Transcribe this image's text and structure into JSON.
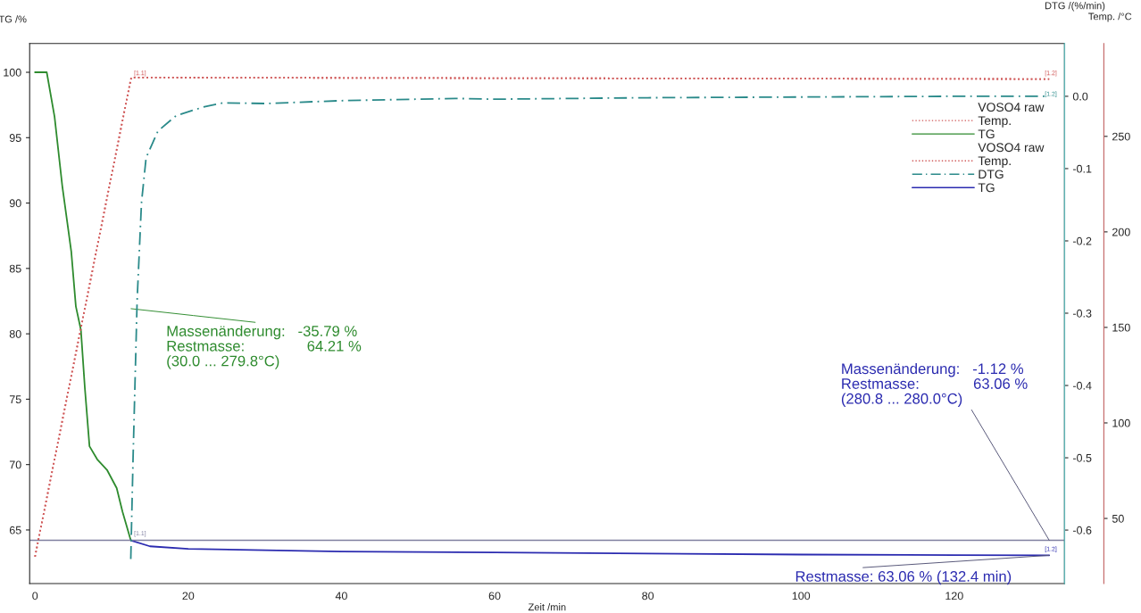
{
  "chart_data": {
    "type": "line",
    "xlabel": "Zeit /min",
    "ylabel": "TG /%",
    "y2label": "DTG /(%/min)",
    "y3label": "Temp. /°C",
    "xlim": [
      -0.7,
      134.4
    ],
    "xticks": [
      0,
      20,
      40,
      60,
      80,
      100,
      120
    ],
    "ylim": [
      60.9,
      102.2
    ],
    "yticks": [
      65,
      70,
      75,
      80,
      85,
      90,
      95,
      100
    ],
    "y2lim": [
      -0.674,
      0.073
    ],
    "y2ticks": [
      {
        "value": 0,
        "label": "0.0"
      },
      {
        "value": -0.1,
        "label": "-0.1"
      },
      {
        "value": -0.2,
        "label": "-0.2"
      },
      {
        "value": -0.3,
        "label": "-0.3"
      },
      {
        "value": -0.4,
        "label": "-0.4"
      },
      {
        "value": -0.5,
        "label": "-0.5"
      },
      {
        "value": -0.6,
        "label": "-0.6"
      }
    ],
    "y3lim": [
      15.9,
      298.6
    ],
    "y3ticks": [
      50,
      100,
      150,
      200,
      250
    ],
    "grid": false,
    "legend": "top right",
    "legend_title": [
      "VOSO4 raw",
      "VOSO4 raw"
    ],
    "series": [
      {
        "name": "Temp.",
        "axis": "y3",
        "color": "#d05a5a",
        "line_style": "dotted",
        "x": [
          0,
          12.5,
          12.6,
          132.4
        ],
        "values": [
          30.0,
          279.8,
          280.8,
          280.0
        ]
      },
      {
        "name": "TG",
        "axis": "y",
        "color": "#2e8b2e",
        "line_style": "solid",
        "x": [
          0,
          1.0,
          1.53,
          2.55,
          3.56,
          4.73,
          5.33,
          5.99,
          6.5,
          7.11,
          8.12,
          9.39,
          10.66,
          11.42,
          12.5
        ],
        "values": [
          100,
          100,
          100,
          96.6,
          91.3,
          86.3,
          82.1,
          80.3,
          75.9,
          71.4,
          70.4,
          69.6,
          68.2,
          66.4,
          64.21
        ]
      },
      {
        "name": "Temp.",
        "axis": "y3",
        "color": "#d05a5a",
        "line_style": "dotted",
        "x": [
          0,
          12.5,
          12.6,
          132.4
        ],
        "values": [
          30.0,
          279.8,
          280.8,
          280.0
        ]
      },
      {
        "name": "DTG",
        "axis": "y2",
        "color": "#2a8a8a",
        "line_style": "dashdot",
        "x": [
          12.5,
          12.8,
          13.33,
          13.9,
          14.5,
          16.05,
          18.4,
          21.9,
          24.6,
          30,
          40,
          55,
          60,
          70,
          80,
          100,
          120,
          132.4
        ],
        "values": [
          -0.64,
          -0.5,
          -0.282,
          -0.147,
          -0.085,
          -0.048,
          -0.027,
          -0.015,
          -0.009,
          -0.01,
          -0.006,
          -0.003,
          -0.004,
          -0.003,
          -0.002,
          -0.001,
          0,
          0
        ]
      },
      {
        "name": "TG",
        "axis": "y",
        "color": "#2b2bb0",
        "line_style": "solid",
        "x": [
          12.5,
          15,
          20,
          30,
          40,
          60,
          80,
          100,
          120,
          132.4
        ],
        "values": [
          64.21,
          63.75,
          63.55,
          63.45,
          63.35,
          63.28,
          63.2,
          63.12,
          63.08,
          63.06
        ]
      }
    ],
    "ref_lines": [
      {
        "axis": "y",
        "value": 64.21,
        "color": "#7f7f9f"
      }
    ],
    "annotations": [
      "Massenänderung:   -35.79 %\nRestmasse:               64.21 %\n(30.0 ... 279.8°C)",
      {
        "text": "Massenänderung:   -1.12 %\nRestmasse:             63.06 %\n(280.8 ... 280.0°C)",
        "x": 132.4,
        "y": 64.21
      },
      {
        "text": "Restmasse: 63.06 % (132.4 min)",
        "x": 132.4,
        "y": 63.06
      },
      {
        "text": "[1.1]",
        "x": 12.6,
        "y": 99.5
      },
      {
        "text": "[1.2]",
        "x": 131.5,
        "y": 99.5
      },
      {
        "text": "[1.2]",
        "x": 131.5,
        "y": 97.9
      },
      {
        "text": "[1.1]",
        "x": 12.6,
        "y": 64.3
      },
      {
        "text": "[1.2]",
        "x": 131.5,
        "y": 63.1
      }
    ]
  }
}
